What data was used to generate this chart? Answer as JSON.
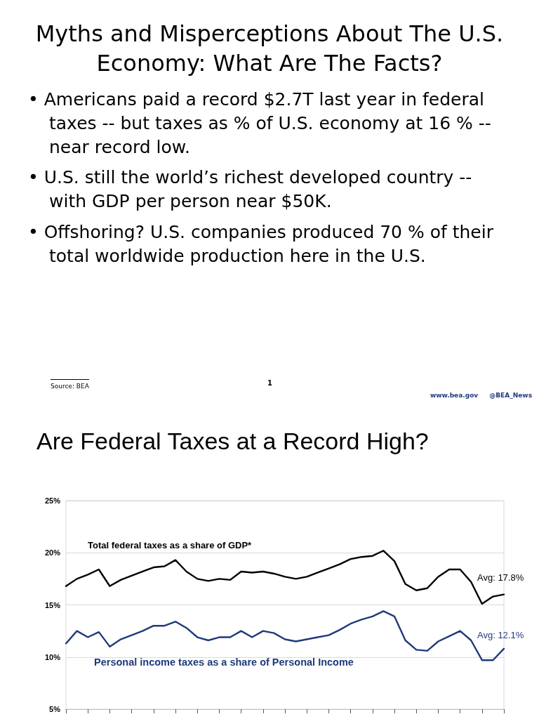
{
  "chart_data": [
    {
      "type": "other",
      "title": "Myths and Misperceptions About The U.S. Economy: What Are The Facts?",
      "annotations": [
        "•  Americans paid a record $2.7T last year in federal taxes -- but taxes as % of U.S. economy at 16 % --  near record low.",
        "• U.S. still the world’s richest developed country -- with GDP per person near $50K.",
        "• Offshoring? U.S. companies produced 70 % of their total worldwide production here in the U.S.",
        "Source: BEA",
        "1",
        "www.bea.gov",
        "@BEA_News"
      ]
    },
    {
      "type": "line",
      "title": "Are Federal Taxes at a Record High?",
      "categories": [
        null,
        null,
        null,
        null,
        null,
        null,
        null,
        null,
        null,
        null,
        null,
        null,
        null,
        null,
        null,
        null,
        null,
        null,
        null,
        null,
        null,
        null,
        null,
        null,
        null,
        null,
        null,
        null,
        null,
        null,
        null,
        null,
        null,
        null,
        null,
        null,
        null,
        null,
        null,
        null,
        null
      ],
      "series": [
        {
          "name": "Total federal taxes as a share of GDP*",
          "color": "#000000",
          "values": [
            16.8,
            17.5,
            17.9,
            18.4,
            16.8,
            17.4,
            17.8,
            18.2,
            18.6,
            18.7,
            19.3,
            18.2,
            17.5,
            17.3,
            17.5,
            17.4,
            18.2,
            18.1,
            18.2,
            18.0,
            17.7,
            17.5,
            17.7,
            18.1,
            18.5,
            18.9,
            19.4,
            19.6,
            19.7,
            20.2,
            19.2,
            17.0,
            16.4,
            16.6,
            17.7,
            18.4,
            18.4,
            17.2,
            15.1,
            15.8,
            16.0
          ]
        },
        {
          "name": "Personal income taxes as a share of Personal Income",
          "color": "#1f3a7a",
          "values": [
            11.3,
            12.5,
            11.9,
            12.4,
            11.0,
            11.7,
            12.1,
            12.5,
            13.0,
            13.0,
            13.4,
            12.8,
            11.9,
            11.6,
            11.9,
            11.9,
            12.5,
            11.9,
            12.5,
            12.3,
            11.7,
            11.5,
            11.7,
            11.9,
            12.1,
            12.6,
            13.2,
            13.6,
            13.9,
            14.4,
            13.9,
            11.6,
            10.7,
            10.6,
            11.5,
            12.0,
            12.5,
            11.6,
            9.7,
            9.7,
            10.8
          ]
        }
      ],
      "annotations": [
        "Avg: 17.8%",
        "Avg: 12.1%"
      ],
      "ylim": [
        5,
        25
      ],
      "yticks": [
        {
          "value": 5,
          "label": "5%"
        },
        {
          "value": 10,
          "label": "10%"
        },
        {
          "value": 15,
          "label": "15%"
        },
        {
          "value": 20,
          "label": "20%"
        },
        {
          "value": 25,
          "label": "25%"
        }
      ],
      "grid": "y",
      "legend": false,
      "marker": "none",
      "line_style": "solid",
      "tick_labels": "y"
    }
  ]
}
